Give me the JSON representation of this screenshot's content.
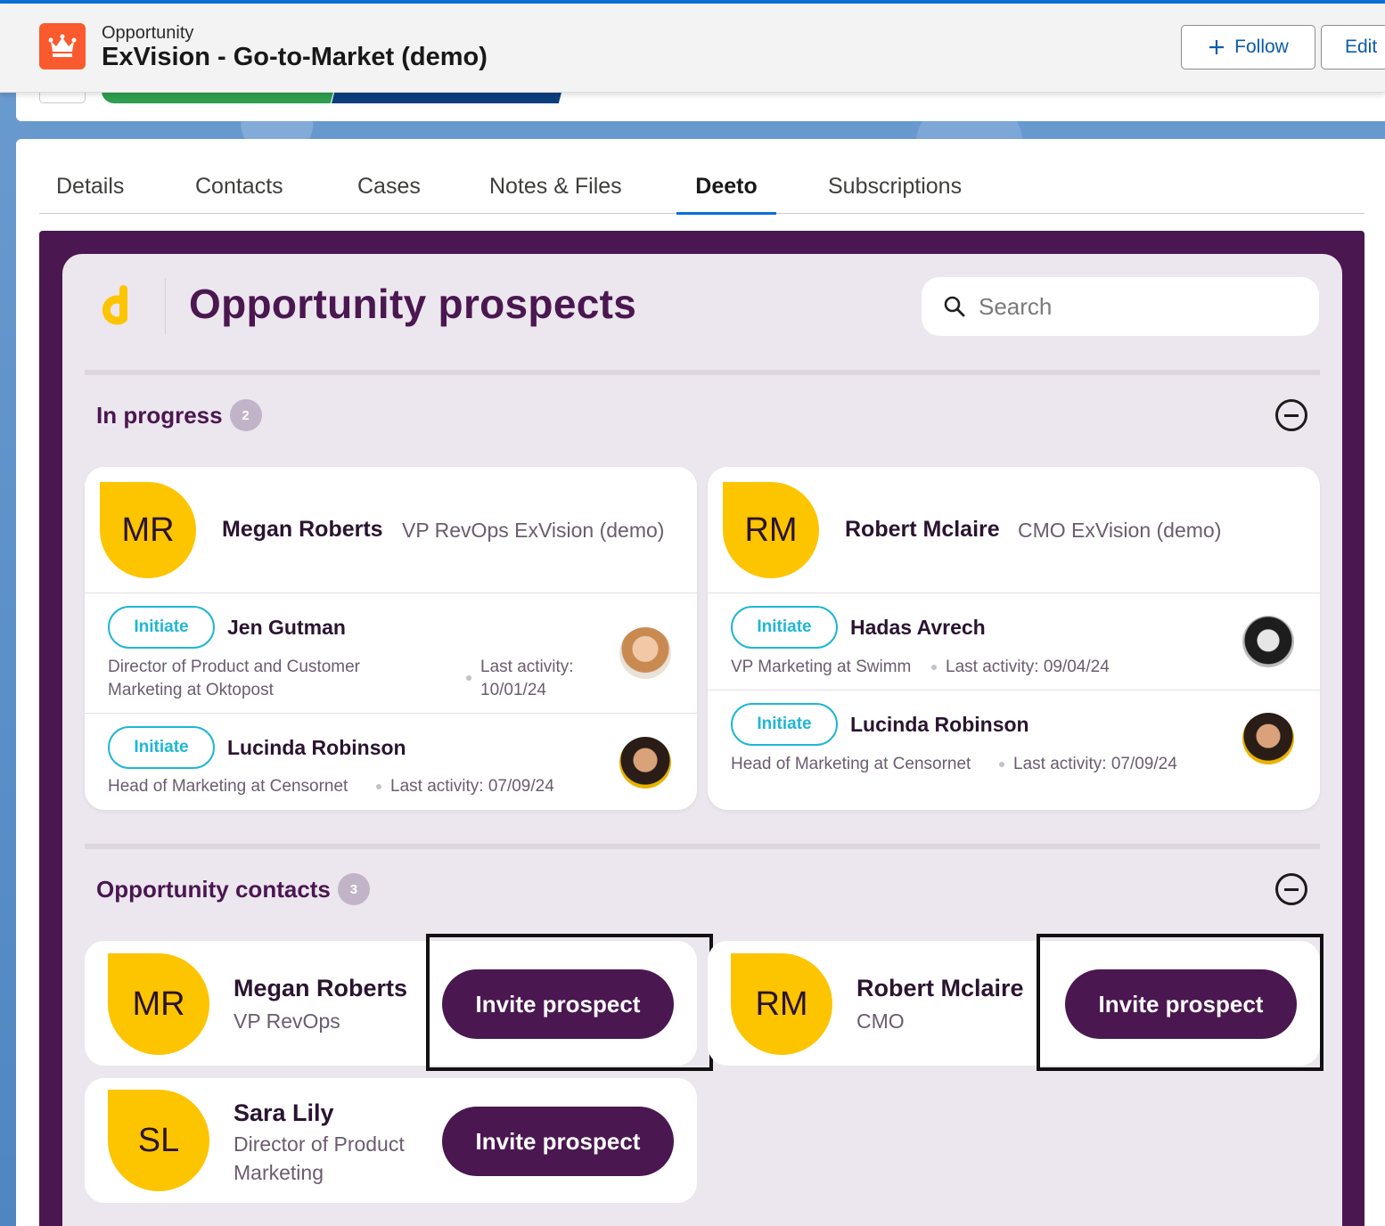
{
  "header": {
    "object_type": "Opportunity",
    "record_name": "ExVision - Go-to-Market (demo)",
    "follow_label": "Follow",
    "edit_label": "Edit"
  },
  "tabs": [
    "Details",
    "Contacts",
    "Cases",
    "Notes & Files",
    "Deeto",
    "Subscriptions"
  ],
  "active_tab": "Deeto",
  "panel": {
    "title": "Opportunity prospects",
    "search_placeholder": "Search"
  },
  "in_progress": {
    "title": "In progress",
    "count": "2",
    "cards": [
      {
        "initials": "MR",
        "name": "Megan Roberts",
        "role": "VP RevOps ExVision (demo)",
        "contacts": [
          {
            "action": "Initiate",
            "name": "Jen Gutman",
            "title_line1": "Director of Product and Customer",
            "title_line2": "Marketing at Oktopost",
            "activity_line1": "Last activity:",
            "activity_line2": "10/01/24"
          },
          {
            "action": "Initiate",
            "name": "Lucinda Robinson",
            "title": "Head of Marketing at Censornet",
            "activity": "Last activity: 07/09/24"
          }
        ]
      },
      {
        "initials": "RM",
        "name": "Robert Mclaire",
        "role": "CMO ExVision (demo)",
        "contacts": [
          {
            "action": "Initiate",
            "name": "Hadas Avrech",
            "title": "VP Marketing at Swimm",
            "activity": "Last activity: 09/04/24"
          },
          {
            "action": "Initiate",
            "name": "Lucinda Robinson",
            "title": "Head of Marketing at Censornet",
            "activity": "Last activity: 07/09/24"
          }
        ]
      }
    ]
  },
  "opportunity_contacts": {
    "title": "Opportunity contacts",
    "count": "3",
    "cards": [
      {
        "initials": "MR",
        "name": "Megan Roberts",
        "role": "VP RevOps",
        "button": "Invite prospect"
      },
      {
        "initials": "RM",
        "name": "Robert Mclaire",
        "role": "CMO",
        "button": "Invite prospect"
      },
      {
        "initials": "SL",
        "name": "Sara Lily",
        "role_line1": "Director of Product",
        "role_line2": "Marketing",
        "button": "Invite prospect"
      }
    ]
  },
  "colors": {
    "deeto_purple": "#4a1750",
    "initials_yellow": "#fdc400",
    "initiate_cyan": "#1fb6d6",
    "salesforce_orange": "#fa5a2e",
    "link_blue": "#0b5cab"
  }
}
